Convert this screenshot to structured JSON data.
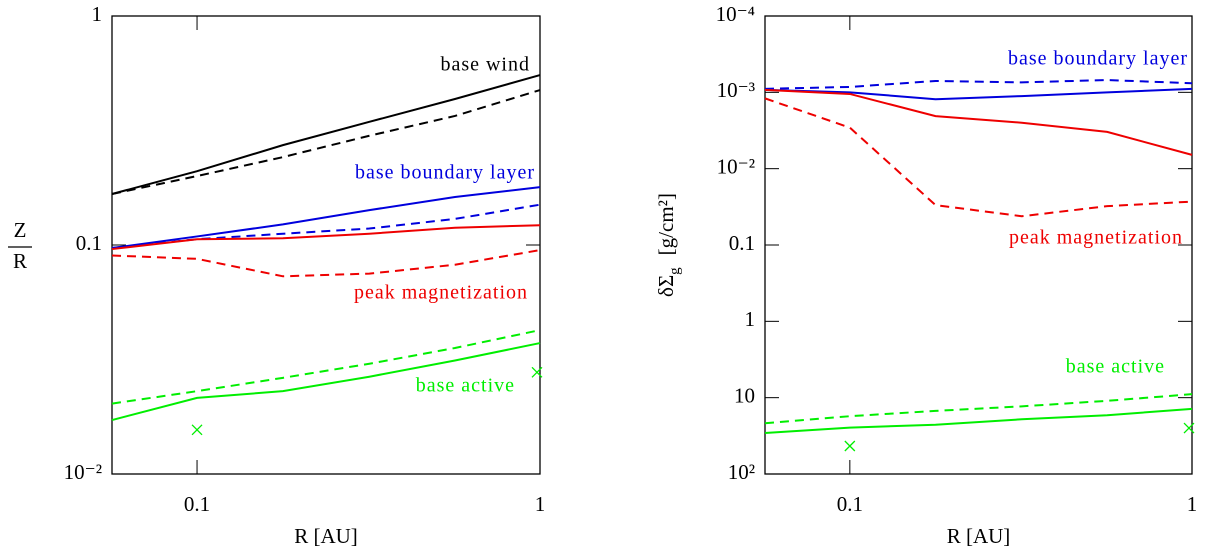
{
  "chart_data": [
    {
      "type": "line",
      "xlabel": "R [AU]",
      "ylabel_numerator": "Z",
      "ylabel_denominator": "R",
      "xlog": true,
      "ylog": true,
      "yinvert": false,
      "xlim": [
        0.0565,
        1
      ],
      "ylim": [
        0.01,
        1
      ],
      "xticks": [
        0.1,
        1
      ],
      "yticks": [
        {
          "value": 0.01,
          "label": "10⁻²"
        },
        0.1,
        1
      ],
      "x": [
        0.0565,
        0.1,
        0.178,
        0.318,
        0.565,
        1
      ],
      "series": [
        {
          "color": "#000000",
          "style": "solid",
          "values": [
            0.167,
            0.21,
            0.273,
            0.345,
            0.434,
            0.552
          ]
        },
        {
          "color": "#000000",
          "style": "dashed",
          "values": [
            0.167,
            0.2,
            0.242,
            0.3,
            0.366,
            0.475
          ]
        },
        {
          "color": "#0000dd",
          "style": "solid",
          "values": [
            0.097,
            0.109,
            0.123,
            0.142,
            0.162,
            0.179
          ]
        },
        {
          "color": "#0000dd",
          "style": "dashed",
          "values": [
            0.097,
            0.106,
            0.112,
            0.118,
            0.13,
            0.15
          ]
        },
        {
          "color": "#ee0000",
          "style": "solid",
          "values": [
            0.096,
            0.106,
            0.107,
            0.112,
            0.119,
            0.122
          ]
        },
        {
          "color": "#ee0000",
          "style": "dashed",
          "values": [
            0.09,
            0.087,
            0.073,
            0.075,
            0.082,
            0.095
          ]
        },
        {
          "color": "#00ee00",
          "style": "solid",
          "values": [
            0.0172,
            0.0215,
            0.023,
            0.0266,
            0.0313,
            0.0373
          ]
        },
        {
          "color": "#00ee00",
          "style": "dashed",
          "values": [
            0.0203,
            0.023,
            0.0263,
            0.0303,
            0.0355,
            0.0425
          ]
        },
        {
          "color": "#00ee00",
          "style": "x",
          "x": [
            0.1,
            0.98
          ],
          "values": [
            0.0156,
            0.0278
          ]
        }
      ],
      "annotations": [
        {
          "text": "base wind",
          "color": "#000000"
        },
        {
          "text": "base boundary layer",
          "color": "#0000dd"
        },
        {
          "text": "peak magnetization",
          "color": "#ee0000"
        },
        {
          "text": "base active",
          "color": "#00ee00"
        }
      ]
    },
    {
      "type": "line",
      "xlabel": "R [AU]",
      "ylabel": "δΣ",
      "ylabel_sub": "g",
      "ylabel_unit": "[g/cm²]",
      "xlog": true,
      "ylog": true,
      "yinvert": true,
      "xlim": [
        0.0565,
        1
      ],
      "ylim": [
        0.0001,
        100
      ],
      "xticks": [
        0.1,
        1
      ],
      "yticks": [
        {
          "value": 0.0001,
          "label": "10⁻⁴"
        },
        {
          "value": 0.001,
          "label": "10⁻³"
        },
        {
          "value": 0.01,
          "label": "10⁻²"
        },
        0.1,
        1,
        10,
        {
          "value": 100,
          "label": "10²"
        }
      ],
      "x": [
        0.0565,
        0.1,
        0.178,
        0.318,
        0.565,
        1
      ],
      "series": [
        {
          "color": "#0000dd",
          "style": "solid",
          "values": [
            0.00093,
            0.001,
            0.00123,
            0.00112,
            0.001,
            0.0009
          ]
        },
        {
          "color": "#0000dd",
          "style": "dashed",
          "values": [
            0.0009,
            0.00085,
            0.00071,
            0.00074,
            0.00069,
            0.00076
          ]
        },
        {
          "color": "#ee0000",
          "style": "solid",
          "values": [
            0.00093,
            0.00105,
            0.00205,
            0.0025,
            0.0033,
            0.0066
          ]
        },
        {
          "color": "#ee0000",
          "style": "dashed",
          "values": [
            0.0012,
            0.0029,
            0.03,
            0.042,
            0.031,
            0.027
          ]
        },
        {
          "color": "#00ee00",
          "style": "solid",
          "values": [
            29,
            24.7,
            22.6,
            19.2,
            17,
            14
          ]
        },
        {
          "color": "#00ee00",
          "style": "dashed",
          "values": [
            21.6,
            17.5,
            14.9,
            13,
            11,
            9
          ]
        },
        {
          "color": "#00ee00",
          "style": "x",
          "x": [
            0.1,
            0.98
          ],
          "values": [
            43,
            25
          ]
        }
      ],
      "annotations": [
        {
          "text": "base boundary layer",
          "color": "#0000dd"
        },
        {
          "text": "peak magnetization",
          "color": "#ee0000"
        },
        {
          "text": "base active",
          "color": "#00ee00"
        }
      ]
    }
  ]
}
